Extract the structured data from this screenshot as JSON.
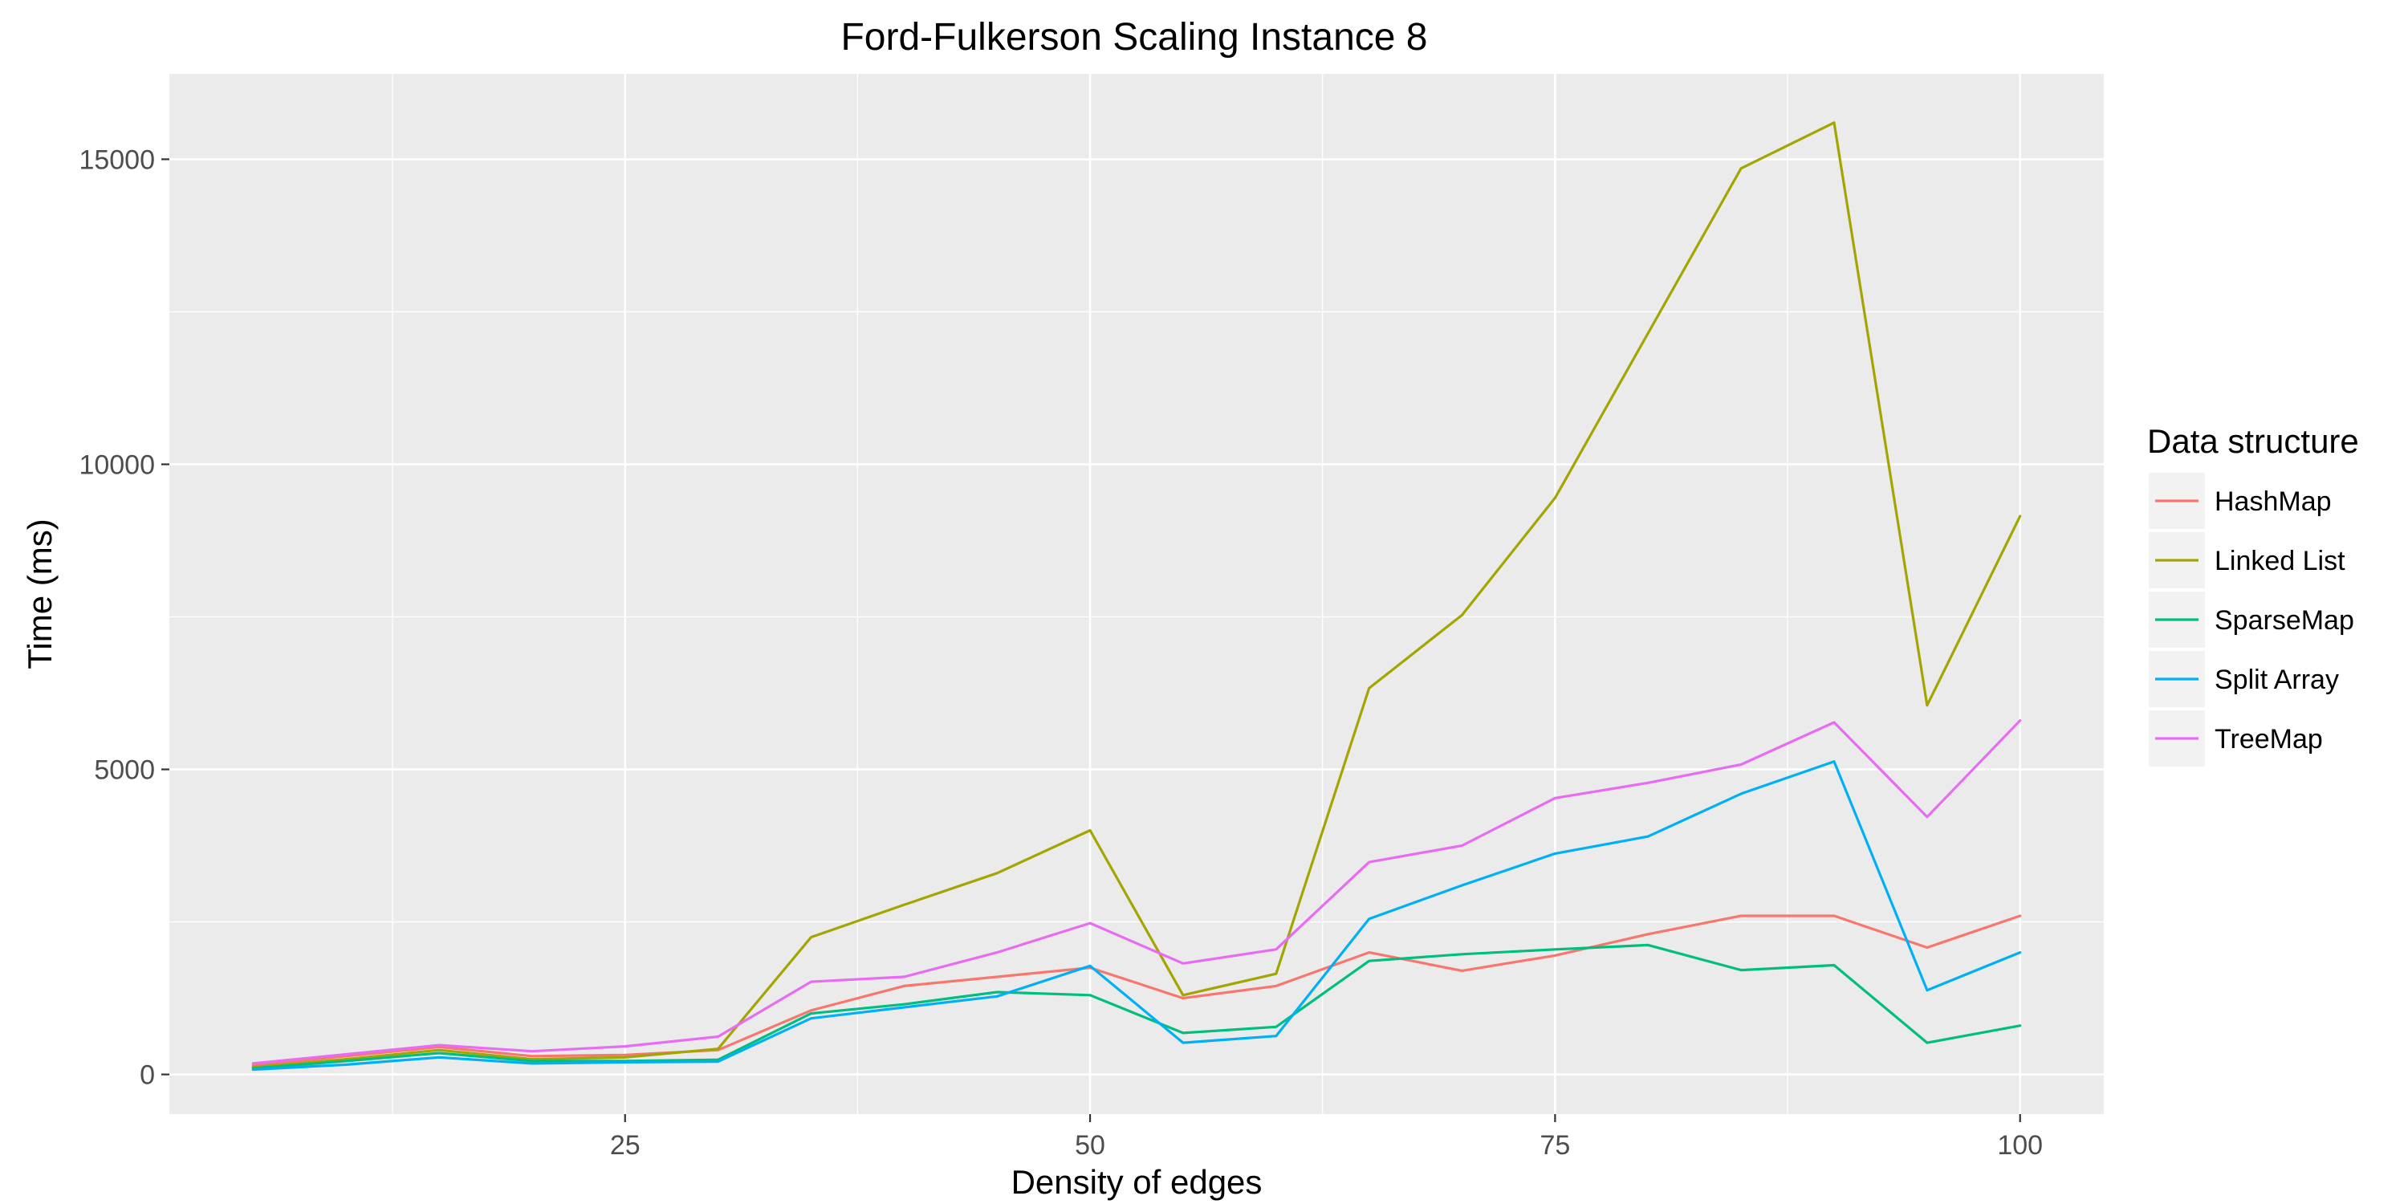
{
  "chart_data": {
    "type": "line",
    "title": "Ford-Fulkerson Scaling Instance 8",
    "xlabel": "Density of edges",
    "ylabel": "Time (ms)",
    "xlim": [
      0.5,
      104.5
    ],
    "ylim": [
      -650,
      16400
    ],
    "xticks": [
      25,
      50,
      75,
      100
    ],
    "yticks": [
      0,
      5000,
      10000,
      15000
    ],
    "grid": true,
    "legend": {
      "title": "Data structure",
      "position": "right"
    },
    "x": [
      5,
      10,
      15,
      20,
      25,
      30,
      35,
      40,
      45,
      50,
      55,
      60,
      65,
      70,
      75,
      80,
      85,
      90,
      95,
      100
    ],
    "series": [
      {
        "name": "HashMap",
        "color": "#F8766D",
        "values": [
          150,
          300,
          450,
          300,
          320,
          400,
          1050,
          1450,
          1600,
          1750,
          1250,
          1450,
          2000,
          1700,
          1950,
          2300,
          2600,
          2600,
          2080,
          2600
        ]
      },
      {
        "name": "Linked List",
        "color": "#A3A500",
        "values": [
          120,
          250,
          400,
          250,
          280,
          420,
          2250,
          2780,
          3300,
          4000,
          1300,
          1650,
          6330,
          7530,
          9450,
          12150,
          14850,
          15600,
          6050,
          9150
        ]
      },
      {
        "name": "SparseMap",
        "color": "#00BF7D",
        "values": [
          100,
          220,
          350,
          220,
          220,
          240,
          1000,
          1150,
          1350,
          1300,
          680,
          780,
          1860,
          1970,
          2050,
          2120,
          1710,
          1790,
          520,
          800
        ]
      },
      {
        "name": "Split Array",
        "color": "#00B0F6",
        "values": [
          80,
          160,
          280,
          180,
          200,
          210,
          920,
          1100,
          1280,
          1780,
          520,
          630,
          2550,
          3100,
          3620,
          3900,
          4600,
          5130,
          1380,
          2000
        ]
      },
      {
        "name": "TreeMap",
        "color": "#E76BF3",
        "values": [
          180,
          330,
          480,
          380,
          460,
          620,
          1520,
          1600,
          2000,
          2480,
          1820,
          2050,
          3480,
          3750,
          4530,
          4780,
          5080,
          5770,
          4220,
          5800
        ]
      }
    ]
  }
}
